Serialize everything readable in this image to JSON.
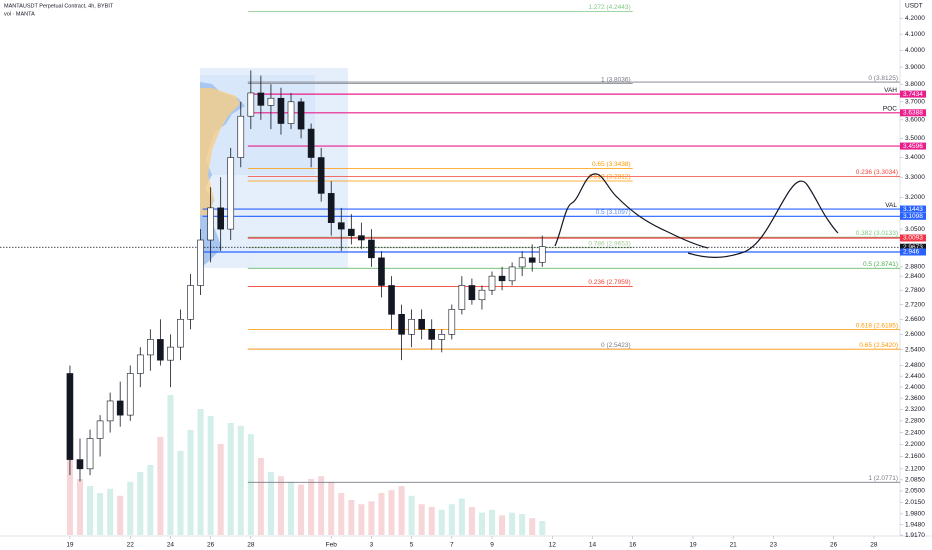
{
  "chart_data": {
    "type": "candlestick",
    "title": "MANTAUSDT Perpetual Contract, 4h, BYBIT",
    "subtitle": "vol · MANTA",
    "y_axis_label": "USDT",
    "log_scale": true,
    "grid": false,
    "up_color": "#ffffff",
    "down_color": "#131722",
    "volume_up_color": "#d4eee9",
    "volume_down_color": "#f6d6d8",
    "xlim": [
      -3.48,
      41.3
    ],
    "ylim": [
      1.9175,
      4.318
    ],
    "xticks": [
      {
        "value": 0,
        "label": "19"
      },
      {
        "value": 3,
        "label": "22"
      },
      {
        "value": 5,
        "label": "24"
      },
      {
        "value": 7,
        "label": "26"
      },
      {
        "value": 9,
        "label": "28"
      },
      {
        "value": 13,
        "label": "Feb"
      },
      {
        "value": 15,
        "label": "3"
      },
      {
        "value": 17,
        "label": "5"
      },
      {
        "value": 19,
        "label": "7"
      },
      {
        "value": 21,
        "label": "9"
      },
      {
        "value": 24,
        "label": "12"
      },
      {
        "value": 26,
        "label": "14"
      },
      {
        "value": 28,
        "label": "16"
      },
      {
        "value": 31,
        "label": "19"
      },
      {
        "value": 33,
        "label": "21"
      },
      {
        "value": 35,
        "label": "23"
      },
      {
        "value": 38,
        "label": "26"
      },
      {
        "value": 40,
        "label": "28"
      }
    ],
    "yticks": [
      {
        "value": 4.2,
        "label": "4.2000"
      },
      {
        "value": 4.1,
        "label": "4.1000"
      },
      {
        "value": 4.0,
        "label": "4.0000"
      },
      {
        "value": 3.9,
        "label": "3.9000"
      },
      {
        "value": 3.8,
        "label": "3.8000"
      },
      {
        "value": 3.7,
        "label": "3.7000"
      },
      {
        "value": 3.6,
        "label": "3.6000"
      },
      {
        "value": 3.5,
        "label": "3.5000"
      },
      {
        "value": 3.4,
        "label": "3.4000"
      },
      {
        "value": 3.3,
        "label": "3.3000"
      },
      {
        "value": 3.2,
        "label": "3.2000"
      },
      {
        "value": 3.05,
        "label": "3.0500"
      },
      {
        "value": 2.88,
        "label": "2.8800"
      },
      {
        "value": 2.84,
        "label": "2.8400"
      },
      {
        "value": 2.78,
        "label": "2.7800"
      },
      {
        "value": 2.72,
        "label": "2.7200"
      },
      {
        "value": 2.66,
        "label": "2.6600"
      },
      {
        "value": 2.6,
        "label": "2.6000"
      },
      {
        "value": 2.54,
        "label": "2.5400"
      },
      {
        "value": 2.48,
        "label": "2.4800"
      },
      {
        "value": 2.44,
        "label": "2.4400"
      },
      {
        "value": 2.4,
        "label": "2.4000"
      },
      {
        "value": 2.36,
        "label": "2.3600"
      },
      {
        "value": 2.32,
        "label": "2.3200"
      },
      {
        "value": 2.28,
        "label": "2.2800"
      },
      {
        "value": 2.24,
        "label": "2.2400"
      },
      {
        "value": 2.2,
        "label": "2.2000"
      },
      {
        "value": 2.16,
        "label": "2.1600"
      },
      {
        "value": 2.12,
        "label": "2.1200"
      },
      {
        "value": 2.085,
        "label": "2.0850"
      },
      {
        "value": 2.05,
        "label": "2.0500"
      },
      {
        "value": 2.015,
        "label": "2.0150"
      },
      {
        "value": 1.98,
        "label": "1.9800"
      },
      {
        "value": 1.948,
        "label": "1.9480"
      },
      {
        "value": 1.917,
        "label": "1.9170"
      }
    ],
    "candles": [
      {
        "t": 0,
        "o": 2.45,
        "h": 2.48,
        "l": 2.1,
        "c": 2.15,
        "v": 0.55
      },
      {
        "t": 0.5,
        "o": 2.15,
        "h": 2.22,
        "l": 2.08,
        "c": 2.12,
        "v": 0.4
      },
      {
        "t": 1,
        "o": 2.12,
        "h": 2.25,
        "l": 2.1,
        "c": 2.22,
        "v": 0.35
      },
      {
        "t": 1.5,
        "o": 2.22,
        "h": 2.3,
        "l": 2.16,
        "c": 2.28,
        "v": 0.3
      },
      {
        "t": 2,
        "o": 2.28,
        "h": 2.38,
        "l": 2.24,
        "c": 2.35,
        "v": 0.33
      },
      {
        "t": 2.5,
        "o": 2.35,
        "h": 2.42,
        "l": 2.26,
        "c": 2.3,
        "v": 0.28
      },
      {
        "t": 3,
        "o": 2.3,
        "h": 2.48,
        "l": 2.28,
        "c": 2.45,
        "v": 0.38
      },
      {
        "t": 3.5,
        "o": 2.45,
        "h": 2.55,
        "l": 2.4,
        "c": 2.52,
        "v": 0.45
      },
      {
        "t": 4,
        "o": 2.52,
        "h": 2.62,
        "l": 2.46,
        "c": 2.58,
        "v": 0.5
      },
      {
        "t": 4.5,
        "o": 2.58,
        "h": 2.66,
        "l": 2.48,
        "c": 2.5,
        "v": 0.7
      },
      {
        "t": 5,
        "o": 2.5,
        "h": 2.6,
        "l": 2.4,
        "c": 2.55,
        "v": 1.0
      },
      {
        "t": 5.5,
        "o": 2.55,
        "h": 2.7,
        "l": 2.5,
        "c": 2.66,
        "v": 0.6
      },
      {
        "t": 6,
        "o": 2.66,
        "h": 2.85,
        "l": 2.62,
        "c": 2.8,
        "v": 0.75
      },
      {
        "t": 6.5,
        "o": 2.8,
        "h": 3.05,
        "l": 2.76,
        "c": 3.0,
        "v": 0.9
      },
      {
        "t": 7,
        "o": 3.0,
        "h": 3.25,
        "l": 2.9,
        "c": 3.15,
        "v": 0.85
      },
      {
        "t": 7.5,
        "o": 3.15,
        "h": 3.3,
        "l": 2.95,
        "c": 3.05,
        "v": 0.65
      },
      {
        "t": 8,
        "o": 3.05,
        "h": 3.45,
        "l": 3.0,
        "c": 3.4,
        "v": 0.8
      },
      {
        "t": 8.5,
        "o": 3.4,
        "h": 3.7,
        "l": 3.35,
        "c": 3.62,
        "v": 0.78
      },
      {
        "t": 9,
        "o": 3.62,
        "h": 3.88,
        "l": 3.55,
        "c": 3.75,
        "v": 0.72
      },
      {
        "t": 9.5,
        "o": 3.75,
        "h": 3.85,
        "l": 3.6,
        "c": 3.68,
        "v": 0.55
      },
      {
        "t": 10,
        "o": 3.68,
        "h": 3.8,
        "l": 3.55,
        "c": 3.72,
        "v": 0.45
      },
      {
        "t": 10.5,
        "o": 3.72,
        "h": 3.78,
        "l": 3.52,
        "c": 3.58,
        "v": 0.42
      },
      {
        "t": 11,
        "o": 3.58,
        "h": 3.75,
        "l": 3.55,
        "c": 3.7,
        "v": 0.38
      },
      {
        "t": 11.5,
        "o": 3.7,
        "h": 3.72,
        "l": 3.5,
        "c": 3.55,
        "v": 0.36
      },
      {
        "t": 12,
        "o": 3.55,
        "h": 3.58,
        "l": 3.35,
        "c": 3.4,
        "v": 0.4
      },
      {
        "t": 12.5,
        "o": 3.4,
        "h": 3.45,
        "l": 3.18,
        "c": 3.22,
        "v": 0.42
      },
      {
        "t": 13,
        "o": 3.22,
        "h": 3.28,
        "l": 3.02,
        "c": 3.08,
        "v": 0.38
      },
      {
        "t": 13.5,
        "o": 3.08,
        "h": 3.15,
        "l": 2.95,
        "c": 3.05,
        "v": 0.3
      },
      {
        "t": 14,
        "o": 3.05,
        "h": 3.12,
        "l": 2.98,
        "c": 3.02,
        "v": 0.25
      },
      {
        "t": 14.5,
        "o": 3.02,
        "h": 3.08,
        "l": 2.96,
        "c": 3.0,
        "v": 0.22
      },
      {
        "t": 15,
        "o": 3.0,
        "h": 3.05,
        "l": 2.88,
        "c": 2.92,
        "v": 0.24
      },
      {
        "t": 15.5,
        "o": 2.92,
        "h": 2.95,
        "l": 2.75,
        "c": 2.8,
        "v": 0.3
      },
      {
        "t": 16,
        "o": 2.8,
        "h": 2.84,
        "l": 2.62,
        "c": 2.68,
        "v": 0.32
      },
      {
        "t": 16.5,
        "o": 2.68,
        "h": 2.72,
        "l": 2.5,
        "c": 2.6,
        "v": 0.35
      },
      {
        "t": 17,
        "o": 2.6,
        "h": 2.7,
        "l": 2.55,
        "c": 2.66,
        "v": 0.28
      },
      {
        "t": 17.5,
        "o": 2.66,
        "h": 2.7,
        "l": 2.58,
        "c": 2.62,
        "v": 0.22
      },
      {
        "t": 18,
        "o": 2.62,
        "h": 2.66,
        "l": 2.54,
        "c": 2.58,
        "v": 0.2
      },
      {
        "t": 18.5,
        "o": 2.58,
        "h": 2.62,
        "l": 2.53,
        "c": 2.6,
        "v": 0.18
      },
      {
        "t": 19,
        "o": 2.6,
        "h": 2.72,
        "l": 2.58,
        "c": 2.7,
        "v": 0.22
      },
      {
        "t": 19.5,
        "o": 2.7,
        "h": 2.84,
        "l": 2.68,
        "c": 2.8,
        "v": 0.26
      },
      {
        "t": 20,
        "o": 2.8,
        "h": 2.83,
        "l": 2.72,
        "c": 2.74,
        "v": 0.2
      },
      {
        "t": 20.5,
        "o": 2.74,
        "h": 2.8,
        "l": 2.7,
        "c": 2.78,
        "v": 0.16
      },
      {
        "t": 21,
        "o": 2.78,
        "h": 2.86,
        "l": 2.76,
        "c": 2.84,
        "v": 0.18
      },
      {
        "t": 21.5,
        "o": 2.84,
        "h": 2.88,
        "l": 2.78,
        "c": 2.82,
        "v": 0.14
      },
      {
        "t": 22,
        "o": 2.82,
        "h": 2.9,
        "l": 2.8,
        "c": 2.88,
        "v": 0.16
      },
      {
        "t": 22.5,
        "o": 2.88,
        "h": 2.95,
        "l": 2.84,
        "c": 2.92,
        "v": 0.15
      },
      {
        "t": 23,
        "o": 2.92,
        "h": 2.98,
        "l": 2.86,
        "c": 2.9,
        "v": 0.12
      },
      {
        "t": 23.5,
        "o": 2.9,
        "h": 3.02,
        "l": 2.88,
        "c": 2.97,
        "v": 0.1
      }
    ],
    "fib_from": 8.85,
    "fib_levels": [
      {
        "label": "1.272 (4.2443)",
        "value": 4.2443,
        "color": "#81c784",
        "to": 28
      },
      {
        "label": "1 (3.8036)",
        "value": 3.8036,
        "color": "#787b86",
        "to": 28
      },
      {
        "label": "0 (3.8125)",
        "value": 3.8125,
        "color": "#787b86",
        "to": 41.3
      },
      {
        "label": "0.65 (3.3438)",
        "value": 3.3438,
        "color": "#ff9800",
        "to": 28
      },
      {
        "label": "0.236 (3.3034)",
        "value": 3.3034,
        "color": "#f44336",
        "to": 41.3
      },
      {
        "label": "0.618 (3.2812)",
        "value": 3.2812,
        "color": "#ff9800",
        "to": 28
      },
      {
        "label": "0.5 (3.1097)",
        "value": 3.1097,
        "color": "#5b8def",
        "to": 28
      },
      {
        "label": "0.382 (3.0133)",
        "value": 3.0133,
        "color": "#81c784",
        "to": 41.3
      },
      {
        "label": "0.786 (2.9653)",
        "value": 2.9653,
        "color": "#a5c99a",
        "to": 28
      },
      {
        "label": "0.5 (2.8741)",
        "value": 2.8741,
        "color": "#4caf50",
        "to": 41.3
      },
      {
        "label": "0.236 (2.7959)",
        "value": 2.7959,
        "color": "#f44336",
        "to": 28
      },
      {
        "label": "0.618 (2.6185)",
        "value": 2.6185,
        "color": "#ff9800",
        "to": 41.3
      },
      {
        "label": "0 (2.5423)",
        "value": 2.5423,
        "color": "#787b86",
        "to": 28
      },
      {
        "label": "0.65 (2.5420)",
        "value": 2.542,
        "color": "#ff9800",
        "to": 41.3
      },
      {
        "label": "1 (2.0771)",
        "value": 2.0771,
        "color": "#787b86",
        "to": 41.3
      }
    ],
    "hlines": [
      {
        "name": "VAH",
        "value": 3.7434,
        "color": "#e91e8c",
        "from": 8.85
      },
      {
        "name": "POC",
        "value": 3.6388,
        "color": "#e91e8c",
        "from": 8.85
      },
      {
        "value": 3.4596,
        "color": "#e91e8c",
        "from": 8.85
      },
      {
        "name": "VAL",
        "value": 3.1443,
        "color": "#2962ff",
        "from": 6.6
      },
      {
        "value": 3.1098,
        "color": "#2962ff",
        "from": 6.6
      },
      {
        "value": 3.0093,
        "color": "#f23645",
        "from": 8.85
      },
      {
        "value": 2.9673,
        "color": "#131722",
        "from": -3.48,
        "dashed": true
      },
      {
        "value": 2.946,
        "color": "#2962ff",
        "from": 6.6
      }
    ]
  }
}
